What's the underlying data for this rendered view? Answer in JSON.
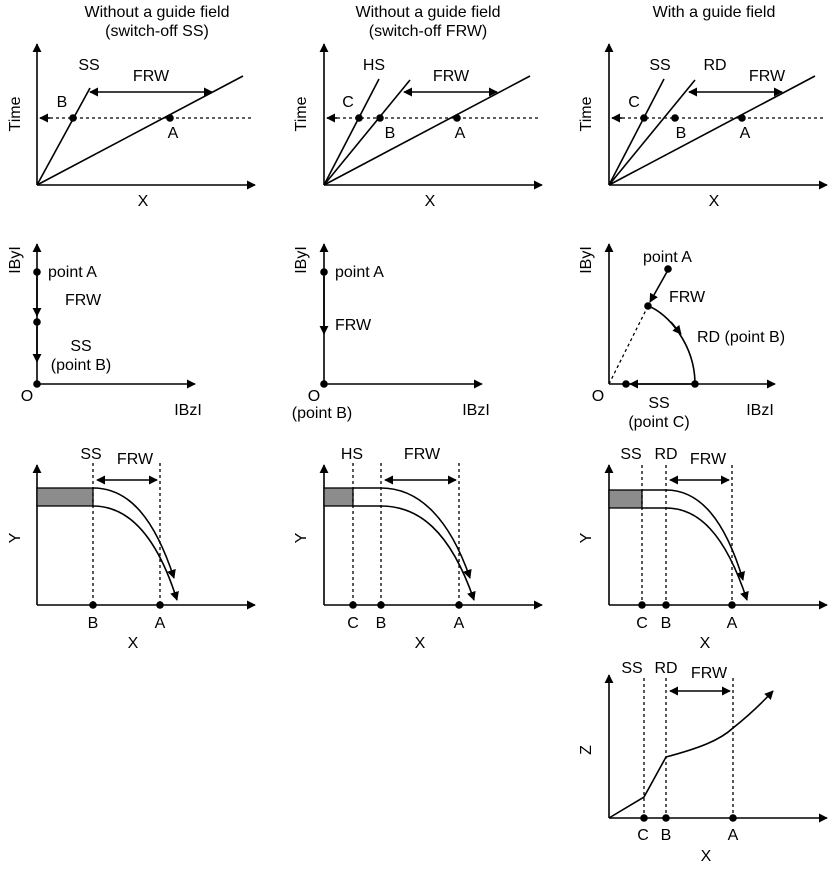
{
  "headers": {
    "col1_line1": "Without a guide field",
    "col1_line2": "(switch-off SS)",
    "col2_line1": "Without a guide field",
    "col2_line2": "(switch-off FRW)",
    "col3": "With a guide field"
  },
  "labels": {
    "time": "Time",
    "x": "X",
    "y": "Y",
    "z": "Z",
    "by": "IByI",
    "bz": "IBzI",
    "origin": "O",
    "ss": "SS",
    "hs": "HS",
    "rd": "RD",
    "frw": "FRW",
    "a": "A",
    "b": "B",
    "c": "C",
    "point_a": "point A",
    "ss_point_b": "(point B)",
    "point_b_paren": "(point B)",
    "rd_point_b": "RD (point B)",
    "ss_point_c": "(point C)"
  },
  "colors": {
    "ink": "#000000",
    "shade": "#8c8c8c",
    "background": "#ffffff"
  }
}
